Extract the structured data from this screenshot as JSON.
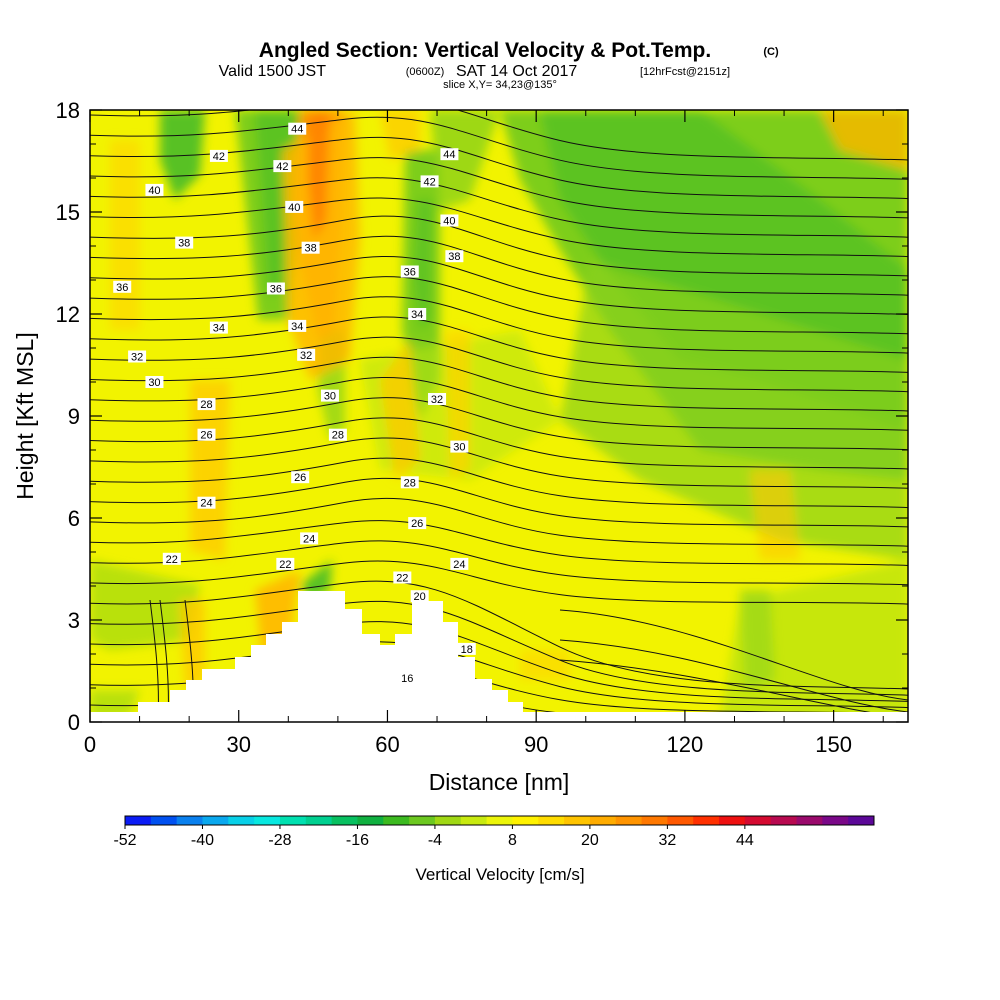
{
  "header": {
    "title_main": "Angled Section: Vertical Velocity & Pot.Temp.",
    "title_unit": "(C)",
    "valid_prefix": "Valid 1500 JST",
    "valid_utc": "(0600Z)",
    "valid_date": "SAT 14 Oct 2017",
    "forecast": "[12hrFcst@2151z]",
    "slice": "slice X,Y= 34,23@135°"
  },
  "chart_data": {
    "type": "heatmap",
    "xlabel": "Distance [nm]",
    "ylabel": "Height [Kft MSL]",
    "xlim": [
      0,
      165
    ],
    "ylim": [
      0,
      18
    ],
    "x_ticks": [
      "0",
      "30",
      "60",
      "90",
      "120",
      "150"
    ],
    "y_ticks": [
      "0",
      "3",
      "6",
      "9",
      "12",
      "15",
      "18"
    ],
    "colorbar": {
      "title": "Vertical Velocity [cm/s]",
      "ticks": [
        "-52",
        "-40",
        "-28",
        "-16",
        "-4",
        "8",
        "20",
        "32",
        "44"
      ],
      "colors": [
        "#0b1cf5",
        "#0050f0",
        "#0a80ee",
        "#0aa8ee",
        "#08d0e8",
        "#08e8e0",
        "#00e0b0",
        "#00d090",
        "#08c060",
        "#10b040",
        "#3cba20",
        "#6cc820",
        "#a0d814",
        "#c8ea10",
        "#ecf50a",
        "#fff200",
        "#ffdc00",
        "#ffc400",
        "#ffac00",
        "#ff9400",
        "#ff7800",
        "#ff5800",
        "#ff3000",
        "#ee1010",
        "#d40a30",
        "#b80a50",
        "#9a0a6c",
        "#7a0888",
        "#5c0898"
      ]
    },
    "theta_labels": [
      {
        "v": "44",
        "x": 41.8,
        "y": 17.45
      },
      {
        "v": "42",
        "x": 26.0,
        "y": 16.65
      },
      {
        "v": "40",
        "x": 13.0,
        "y": 15.65
      },
      {
        "v": "38",
        "x": 19.0,
        "y": 14.1
      },
      {
        "v": "36",
        "x": 6.5,
        "y": 12.8
      },
      {
        "v": "34",
        "x": 26.0,
        "y": 11.6
      },
      {
        "v": "32",
        "x": 9.5,
        "y": 10.75
      },
      {
        "v": "30",
        "x": 13.0,
        "y": 10.0
      },
      {
        "v": "28",
        "x": 23.5,
        "y": 9.35
      },
      {
        "v": "26",
        "x": 23.5,
        "y": 8.45
      },
      {
        "v": "24",
        "x": 23.5,
        "y": 6.45
      },
      {
        "v": "22",
        "x": 16.5,
        "y": 4.8
      },
      {
        "v": "42",
        "x": 38.8,
        "y": 16.35
      },
      {
        "v": "40",
        "x": 41.2,
        "y": 15.15
      },
      {
        "v": "38",
        "x": 44.5,
        "y": 13.95
      },
      {
        "v": "36",
        "x": 37.5,
        "y": 12.75
      },
      {
        "v": "34",
        "x": 41.8,
        "y": 11.65
      },
      {
        "v": "32",
        "x": 43.6,
        "y": 10.8
      },
      {
        "v": "30",
        "x": 48.4,
        "y": 9.6
      },
      {
        "v": "28",
        "x": 50.0,
        "y": 8.45
      },
      {
        "v": "26",
        "x": 42.4,
        "y": 7.2
      },
      {
        "v": "24",
        "x": 44.2,
        "y": 5.4
      },
      {
        "v": "22",
        "x": 39.4,
        "y": 4.65
      },
      {
        "v": "44",
        "x": 72.5,
        "y": 16.7
      },
      {
        "v": "42",
        "x": 68.5,
        "y": 15.9
      },
      {
        "v": "40",
        "x": 72.5,
        "y": 14.75
      },
      {
        "v": "38",
        "x": 73.5,
        "y": 13.7
      },
      {
        "v": "36",
        "x": 64.5,
        "y": 13.25
      },
      {
        "v": "34",
        "x": 66.0,
        "y": 12.0
      },
      {
        "v": "32",
        "x": 70.0,
        "y": 9.5
      },
      {
        "v": "30",
        "x": 74.5,
        "y": 8.1
      },
      {
        "v": "28",
        "x": 64.5,
        "y": 7.05
      },
      {
        "v": "26",
        "x": 66.0,
        "y": 5.85
      },
      {
        "v": "24",
        "x": 74.5,
        "y": 4.65
      },
      {
        "v": "22",
        "x": 63.0,
        "y": 4.25
      },
      {
        "v": "20",
        "x": 66.5,
        "y": 3.7
      },
      {
        "v": "18",
        "x": 76.0,
        "y": 2.15
      },
      {
        "v": "16",
        "x": 64.0,
        "y": 1.3
      }
    ]
  }
}
